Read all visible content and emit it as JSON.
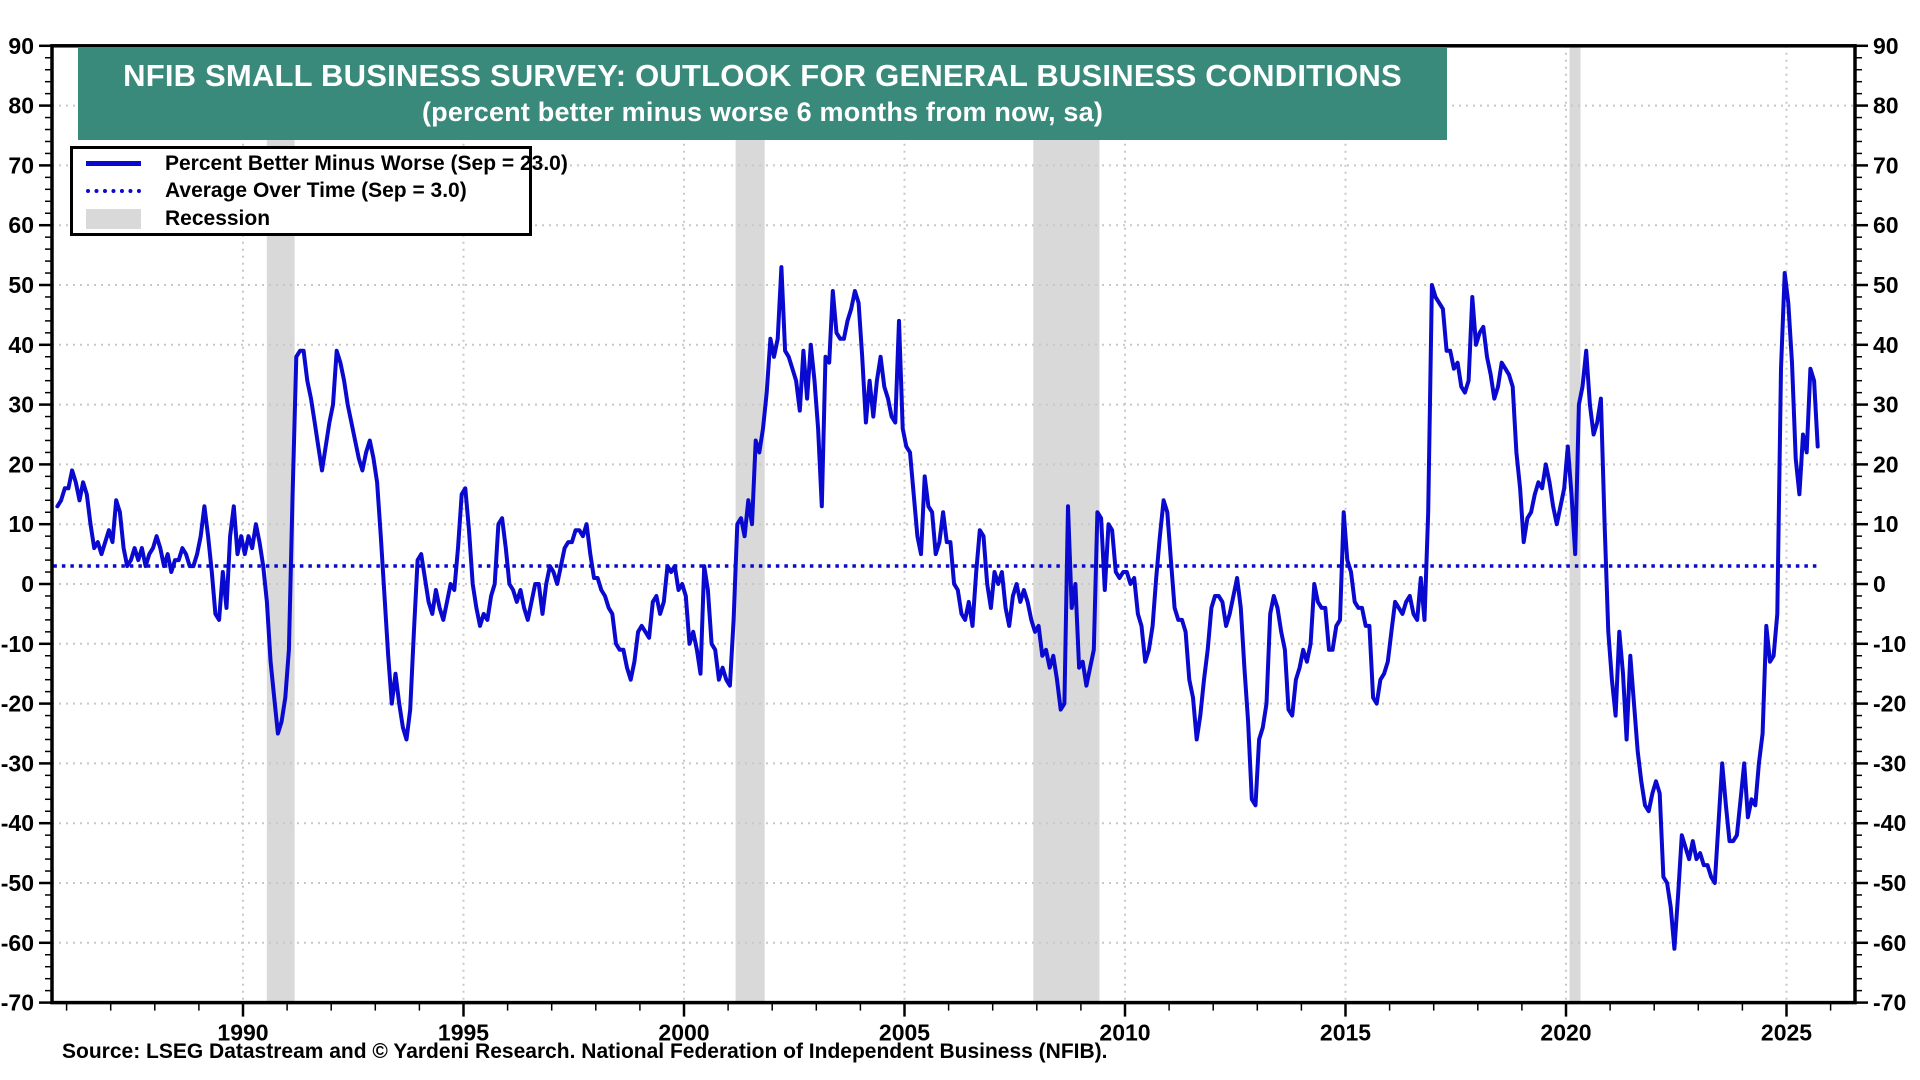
{
  "title": {
    "line1": "NFIB SMALL BUSINESS SURVEY: OUTLOOK FOR GENERAL BUSINESS CONDITIONS",
    "line2": "(percent better minus worse 6 months from now, sa)"
  },
  "legend": {
    "items": [
      {
        "label": "Percent Better Minus Worse (Sep = 23.0)",
        "swatch": "solid-line"
      },
      {
        "label": "Average Over Time (Sep = 3.0)",
        "swatch": "dotted-line"
      },
      {
        "label": "Recession",
        "swatch": "rect"
      }
    ]
  },
  "source": {
    "text": "Source: LSEG Datastream and © Yardeni Research. National Federation of Independent Business (NFIB)."
  },
  "colors": {
    "line": "#0909cf",
    "average": "#0909cf",
    "recession": "#d9d9d9",
    "grid": "#c8c8c8",
    "title_bg": "#3a8a7b",
    "title_fg": "#ffffff",
    "axis": "#000000",
    "legend_recession_swatch": "#d9d9d9"
  },
  "chart_data": {
    "type": "line",
    "title": "NFIB SMALL BUSINESS SURVEY: OUTLOOK FOR GENERAL BUSINESS CONDITIONS",
    "subtitle": "(percent better minus worse 6 months from now, sa)",
    "x_axis": {
      "domain": [
        1985.66,
        2026.6
      ],
      "major_ticks": [
        1990,
        1995,
        2000,
        2005,
        2010,
        2015,
        2020,
        2025
      ],
      "minor_tick_step": 1,
      "grid": true
    },
    "y_axis": {
      "domain": [
        -70,
        90
      ],
      "major_tick_step": 10,
      "minor_tick_step": 2,
      "labels_both_sides": true,
      "grid_step": 10
    },
    "legend_position": "top-left",
    "recessions": [
      [
        1990.54,
        1991.17
      ],
      [
        2001.17,
        2001.83
      ],
      [
        2007.92,
        2009.42
      ],
      [
        2020.08,
        2020.33
      ]
    ],
    "series": [
      {
        "name": "Percent Better Minus Worse (Sep = 23.0)",
        "type": "line",
        "style": "solid",
        "frequency": "monthly",
        "start_year": 1985,
        "start_month": 10,
        "latest": {
          "month": "Sep",
          "value": 23.0
        },
        "values": [
          13,
          14,
          16,
          16,
          19,
          17,
          14,
          17,
          15,
          10,
          6,
          7,
          5,
          7,
          9,
          7,
          14,
          12,
          6,
          3,
          4,
          6,
          4,
          6,
          3,
          5,
          6,
          8,
          6,
          3,
          5,
          2,
          4,
          4,
          6,
          5,
          3,
          3,
          5,
          8,
          13,
          8,
          2,
          -5,
          -6,
          2,
          -4,
          8,
          13,
          5,
          8,
          5,
          8,
          6,
          10,
          7,
          3,
          -3,
          -13,
          -19,
          -25,
          -23,
          -19,
          -11,
          15,
          38,
          39,
          39,
          34,
          31,
          27,
          23,
          19,
          23,
          27,
          30,
          39,
          37,
          34,
          30,
          27,
          24,
          21,
          19,
          22,
          24,
          21,
          17,
          8,
          -2,
          -12,
          -20,
          -15,
          -20,
          -24,
          -26,
          -21,
          -8,
          4,
          5,
          1,
          -3,
          -5,
          -1,
          -4,
          -6,
          -3,
          0,
          -1,
          6,
          15,
          16,
          9,
          0,
          -4,
          -7,
          -5,
          -6,
          -2,
          0,
          10,
          11,
          6,
          0,
          -1,
          -3,
          -1,
          -4,
          -6,
          -3,
          0,
          0,
          -5,
          0,
          3,
          2,
          0,
          3,
          6,
          7,
          7,
          9,
          9,
          8,
          10,
          5,
          1,
          1,
          -1,
          -2,
          -4,
          -5,
          -10,
          -11,
          -11,
          -14,
          -16,
          -13,
          -8,
          -7,
          -8,
          -9,
          -3,
          -2,
          -5,
          -3,
          3,
          2,
          3,
          -1,
          0,
          -2,
          -10,
          -8,
          -11,
          -15,
          3,
          -1,
          -10,
          -11,
          -16,
          -14,
          -16,
          -17,
          -6,
          10,
          11,
          8,
          14,
          10,
          24,
          22,
          26,
          32,
          41,
          38,
          41,
          53,
          39,
          38,
          36,
          34,
          29,
          39,
          31,
          40,
          34,
          26,
          13,
          38,
          37,
          49,
          42,
          41,
          41,
          44,
          46,
          49,
          47,
          38,
          27,
          34,
          28,
          34,
          38,
          33,
          31,
          28,
          27,
          44,
          26,
          23,
          22,
          15,
          8,
          5,
          18,
          13,
          12,
          5,
          7,
          12,
          7,
          7,
          0,
          -1,
          -5,
          -6,
          -3,
          -7,
          2,
          9,
          8,
          0,
          -4,
          2,
          0,
          2,
          -4,
          -7,
          -2,
          0,
          -3,
          -1,
          -3,
          -6,
          -8,
          -7,
          -12,
          -11,
          -14,
          -12,
          -16,
          -21,
          -20,
          13,
          -4,
          0,
          -14,
          -13,
          -17,
          -14,
          -11,
          12,
          11,
          -1,
          10,
          9,
          2,
          1,
          2,
          2,
          0,
          1,
          -5,
          -7,
          -13,
          -11,
          -7,
          1,
          8,
          14,
          12,
          4,
          -4,
          -6,
          -6,
          -8,
          -16,
          -19,
          -26,
          -22,
          -16,
          -11,
          -4,
          -2,
          -2,
          -3,
          -7,
          -5,
          -2,
          1,
          -4,
          -14,
          -23,
          -36,
          -37,
          -26,
          -24,
          -20,
          -5,
          -2,
          -4,
          -8,
          -11,
          -21,
          -22,
          -16,
          -14,
          -11,
          -13,
          -10,
          0,
          -3,
          -4,
          -4,
          -11,
          -11,
          -7,
          -6,
          12,
          4,
          2,
          -3,
          -4,
          -4,
          -7,
          -7,
          -19,
          -20,
          -16,
          -15,
          -13,
          -8,
          -3,
          -4,
          -5,
          -3,
          -2,
          -5,
          -6,
          1,
          -6,
          12,
          50,
          48,
          47,
          46,
          39,
          39,
          36,
          37,
          33,
          32,
          34,
          48,
          40,
          42,
          43,
          38,
          35,
          31,
          33,
          37,
          36,
          35,
          33,
          22,
          16,
          7,
          11,
          12,
          15,
          17,
          16,
          20,
          17,
          13,
          10,
          13,
          16,
          23,
          15,
          5,
          30,
          33,
          39,
          30,
          25,
          27,
          31,
          10,
          -8,
          -16,
          -22,
          -8,
          -15,
          -26,
          -12,
          -20,
          -28,
          -33,
          -37,
          -38,
          -35,
          -33,
          -35,
          -49,
          -50,
          -54,
          -61,
          -52,
          -42,
          -44,
          -46,
          -43,
          -46,
          -45,
          -47,
          -47,
          -49,
          -50,
          -40,
          -30,
          -37,
          -43,
          -43,
          -42,
          -36,
          -30,
          -39,
          -36,
          -37,
          -30,
          -25,
          -7,
          -13,
          -12,
          -5,
          36,
          52,
          47,
          37,
          21,
          15,
          25,
          22,
          36,
          34,
          23
        ]
      },
      {
        "name": "Average Over Time (Sep = 3.0)",
        "type": "hline",
        "style": "dotted",
        "value": 3.0,
        "x_start": 1985.7,
        "x_end": 2025.75,
        "latest": {
          "month": "Sep",
          "value": 3.0
        }
      }
    ]
  }
}
